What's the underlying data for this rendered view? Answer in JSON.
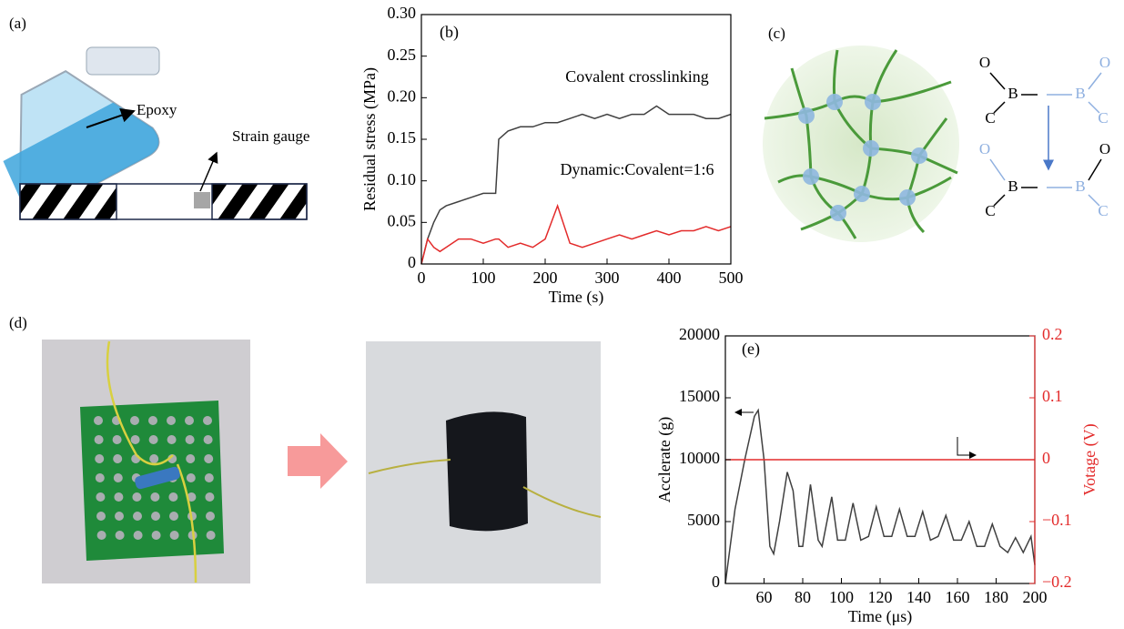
{
  "panel_a": {
    "label": "(a)",
    "epoxy": "Epoxy",
    "gauge": "Strain gauge"
  },
  "panel_c": {
    "label": "(c)",
    "atoms": [
      "O",
      "B",
      "C",
      "B",
      "O",
      "C",
      "O",
      "B",
      "C",
      "B",
      "O",
      "C"
    ]
  },
  "panel_d": {
    "label": "(d)"
  },
  "chart_data": [
    {
      "type": "line",
      "label": "(b)",
      "x_label": "Time (s)",
      "y_label": "Residual stress (MPa)",
      "xlim": [
        0,
        500
      ],
      "xticks": [
        0,
        100,
        200,
        300,
        400,
        500
      ],
      "ylim": [
        0,
        0.3
      ],
      "yticks": [
        0,
        0.05,
        {
          "value": 0.1,
          "label": "0.10"
        },
        0.15,
        {
          "value": 0.2,
          "label": "0.20"
        },
        0.25,
        {
          "value": 0.3,
          "label": "0.30"
        }
      ],
      "x": [
        0,
        10,
        20,
        30,
        40,
        60,
        80,
        100,
        120,
        125,
        140,
        160,
        180,
        200,
        220,
        240,
        260,
        280,
        300,
        320,
        340,
        360,
        380,
        400,
        420,
        440,
        460,
        480,
        500
      ],
      "series": [
        {
          "name": "Covalent crosslinking",
          "color": "#404040",
          "values": [
            0,
            0.03,
            0.05,
            0.065,
            0.07,
            0.075,
            0.08,
            0.085,
            0.085,
            0.15,
            0.16,
            0.165,
            0.165,
            0.17,
            0.17,
            0.175,
            0.18,
            0.175,
            0.18,
            0.175,
            0.18,
            0.18,
            0.19,
            0.18,
            0.18,
            0.18,
            0.175,
            0.175,
            0.18
          ]
        },
        {
          "name": "Dynamic:Covalent=1:6",
          "color": "#e32b2b",
          "values": [
            0,
            0.03,
            0.02,
            0.015,
            0.02,
            0.03,
            0.03,
            0.025,
            0.03,
            0.03,
            0.02,
            0.025,
            0.02,
            0.03,
            0.07,
            0.025,
            0.02,
            0.025,
            0.03,
            0.035,
            0.03,
            0.035,
            0.04,
            0.035,
            0.04,
            0.04,
            0.045,
            0.04,
            0.045
          ]
        }
      ]
    },
    {
      "type": "line",
      "label": "(e)",
      "x_label": "Time (μs)",
      "y_label": "Acclerate (g)",
      "xlim": [
        40,
        200
      ],
      "xticks": [
        60,
        80,
        100,
        120,
        140,
        160,
        180,
        200
      ],
      "ylim": [
        0,
        20000
      ],
      "yticks": [
        0,
        5000,
        10000,
        15000,
        20000
      ],
      "y2lim": [
        -0.2,
        0.2
      ],
      "y2ticks": [
        {
          "value": -0.2,
          "label": "−0.2"
        },
        {
          "value": -0.1,
          "label": "−0.1"
        },
        0,
        0.1,
        0.2
      ],
      "series": [
        {
          "name": "Acclerate (g)",
          "color": "#404040",
          "x": [
            40,
            45,
            50,
            55,
            57,
            60,
            63,
            65,
            68,
            72,
            75,
            78,
            80,
            84,
            88,
            90,
            95,
            98,
            102,
            106,
            110,
            114,
            118,
            122,
            126,
            130,
            134,
            138,
            142,
            146,
            150,
            154,
            158,
            162,
            166,
            170,
            174,
            178,
            182,
            186,
            190,
            194,
            198,
            200
          ],
          "values": [
            0,
            6000,
            10000,
            13500,
            14000,
            10000,
            3000,
            2400,
            5000,
            9000,
            7500,
            3000,
            3000,
            8000,
            3500,
            3000,
            7000,
            3500,
            3500,
            6500,
            3500,
            3800,
            6200,
            3800,
            3800,
            6000,
            3800,
            3800,
            5800,
            3500,
            3800,
            5500,
            3500,
            3500,
            5000,
            3000,
            3000,
            4800,
            3000,
            2500,
            3700,
            2500,
            3800,
            1500
          ]
        },
        {
          "name": "Votage (V)",
          "color": "#e32b2b",
          "axis": "y2",
          "x": [
            40,
            200
          ],
          "values": [
            0,
            0
          ]
        }
      ]
    }
  ]
}
